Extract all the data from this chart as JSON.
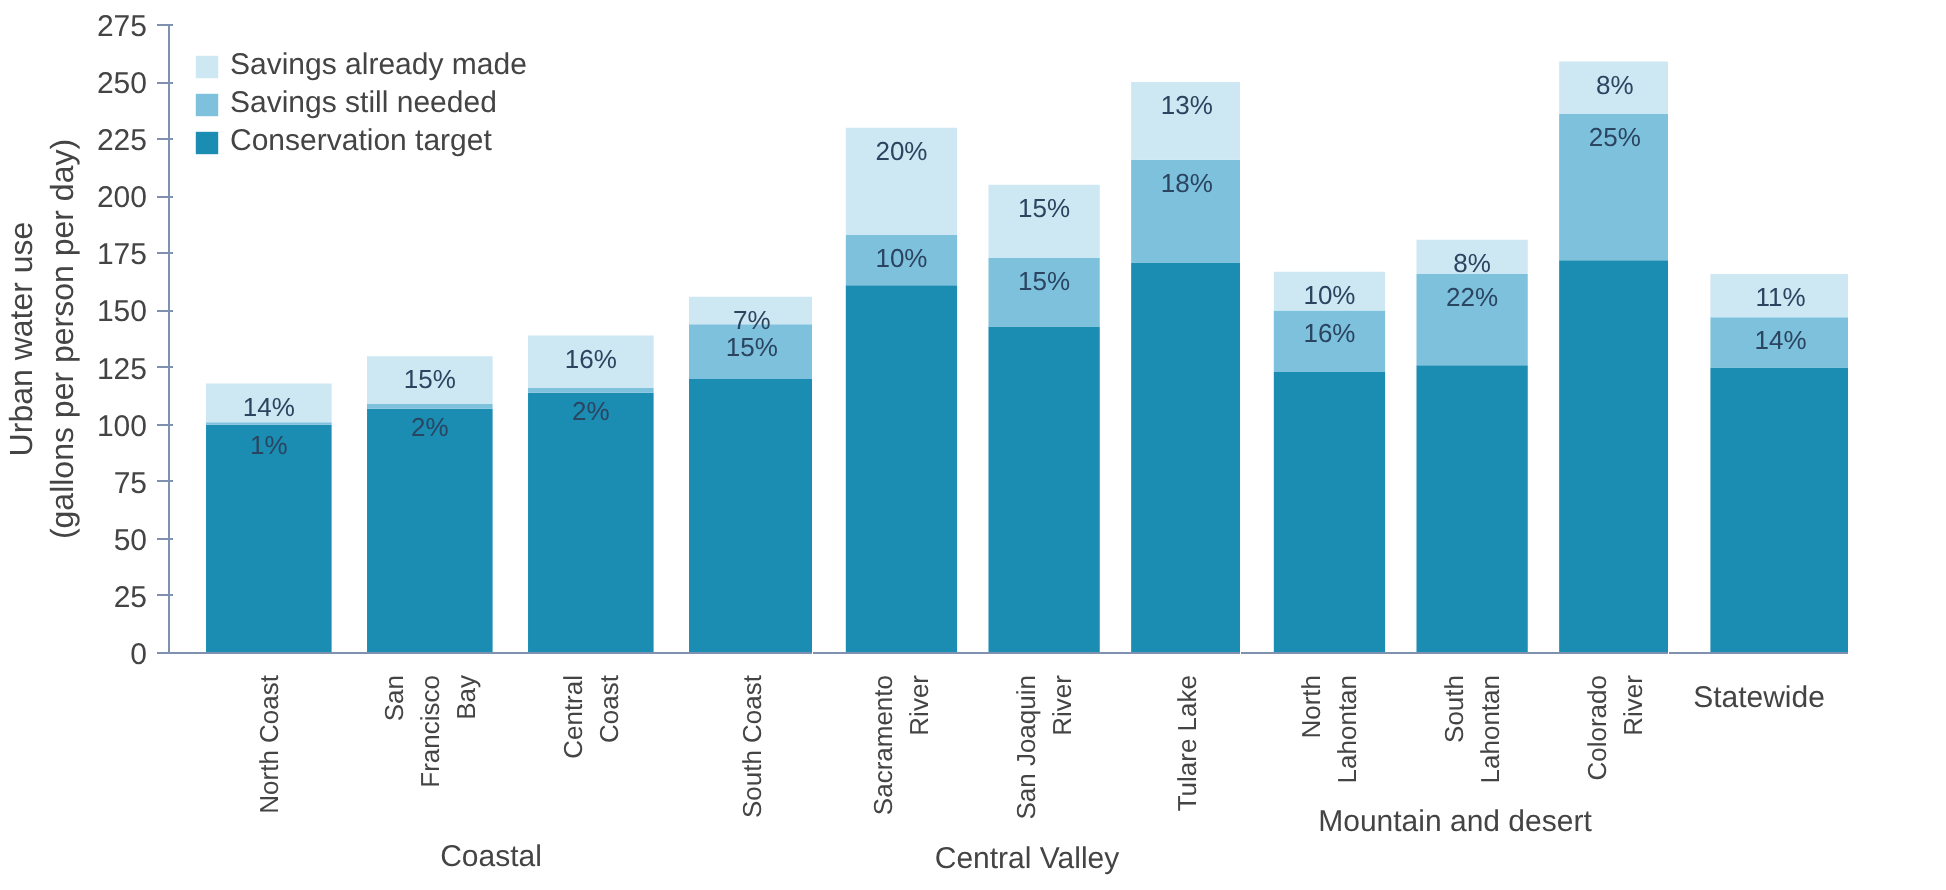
{
  "chart_data": [
    {
      "type": "bar",
      "stacked": true,
      "ylabel": "Urban water use (gallons per person per day)",
      "xlabel": "Coastal",
      "categories": [
        "North Coast",
        "San Francisco Bay",
        "Central Coast",
        "South Coast"
      ],
      "series": [
        {
          "name": "Conservation target",
          "color": "#1b8db3",
          "values": [
            100,
            107,
            114,
            120
          ]
        },
        {
          "name": "Savings still needed",
          "color": "#7dc1dd",
          "values": [
            1,
            2,
            2,
            24
          ]
        },
        {
          "name": "Savings already made",
          "color": "#cde7f3",
          "values": [
            17,
            21,
            23,
            12
          ]
        }
      ],
      "annotations": [
        {
          "text": "14%",
          "x": "North Coast",
          "y": 118
        },
        {
          "text": "1%",
          "x": "North Coast",
          "y": 101
        },
        {
          "text": "15%",
          "x": "San Francisco Bay",
          "y": 130
        },
        {
          "text": "2%",
          "x": "San Francisco Bay",
          "y": 109
        },
        {
          "text": "16%",
          "x": "Central Coast",
          "y": 139
        },
        {
          "text": "2%",
          "x": "Central Coast",
          "y": 116
        },
        {
          "text": "7%",
          "x": "South Coast",
          "y": 156
        },
        {
          "text": "15%",
          "x": "South Coast",
          "y": 144
        }
      ],
      "ylim": [
        0,
        275
      ],
      "yticks": [
        0,
        25,
        50,
        75,
        100,
        125,
        150,
        175,
        200,
        225,
        250,
        275
      ],
      "legend": "top left"
    },
    {
      "type": "bar",
      "stacked": true,
      "xlabel": "Central Valley",
      "categories": [
        "Sacramento River",
        "San Joaquin River",
        "Tulare Lake"
      ],
      "series": [
        {
          "color": "#1b8db3",
          "values": [
            161,
            143,
            171
          ]
        },
        {
          "color": "#7dc1dd",
          "values": [
            22,
            30,
            45
          ]
        },
        {
          "color": "#cde7f3",
          "values": [
            47,
            32,
            34
          ]
        }
      ],
      "annotations": [
        {
          "text": "20%",
          "x": "Sacramento River",
          "y": 230
        },
        {
          "text": "10%",
          "x": "Sacramento River",
          "y": 183
        },
        {
          "text": "15%",
          "x": "San Joaquin River",
          "y": 205
        },
        {
          "text": "15%",
          "x": "San Joaquin River",
          "y": 173
        },
        {
          "text": "13%",
          "x": "Tulare Lake",
          "y": 250
        },
        {
          "text": "18%",
          "x": "Tulare Lake",
          "y": 216
        }
      ],
      "ylim": [
        0,
        275
      ],
      "yticks": [
        0,
        25,
        50,
        75,
        100,
        125,
        150,
        175,
        200,
        225,
        250,
        275
      ],
      "tick_labels": "x"
    },
    {
      "type": "bar",
      "stacked": true,
      "xlabel": "Mountain and desert",
      "categories": [
        "North Lahontan",
        "South Lahontan",
        "Colorado River"
      ],
      "series": [
        {
          "color": "#1b8db3",
          "values": [
            123,
            126,
            172
          ]
        },
        {
          "color": "#7dc1dd",
          "values": [
            27,
            40,
            64
          ]
        },
        {
          "color": "#cde7f3",
          "values": [
            17,
            15,
            23
          ]
        }
      ],
      "annotations": [
        {
          "text": "10%",
          "x": "North Lahontan",
          "y": 167
        },
        {
          "text": "16%",
          "x": "North Lahontan",
          "y": 150
        },
        {
          "text": "8%",
          "x": "South Lahontan",
          "y": 181
        },
        {
          "text": "22%",
          "x": "South Lahontan",
          "y": 166
        },
        {
          "text": "8%",
          "x": "Colorado River",
          "y": 259
        },
        {
          "text": "25%",
          "x": "Colorado River",
          "y": 236
        }
      ],
      "ylim": [
        0,
        275
      ],
      "yticks": [
        0,
        25,
        50,
        75,
        100,
        125,
        150,
        175,
        200,
        225,
        250,
        275
      ],
      "tick_labels": "x"
    },
    {
      "type": "bar",
      "stacked": true,
      "xlabel": "Statewide",
      "categories": [
        null
      ],
      "series": [
        {
          "color": "#1b8db3",
          "values": [
            125
          ]
        },
        {
          "color": "#7dc1dd",
          "values": [
            22
          ]
        },
        {
          "color": "#cde7f3",
          "values": [
            19
          ]
        }
      ],
      "annotations": [
        {
          "text": "11%",
          "y": 166
        },
        {
          "text": "14%",
          "y": 147
        }
      ],
      "ylim": [
        0,
        275
      ],
      "yticks": [
        0,
        25,
        50,
        75,
        100,
        125,
        150,
        175,
        200,
        225,
        250,
        275
      ],
      "tick_labels": "x"
    }
  ]
}
